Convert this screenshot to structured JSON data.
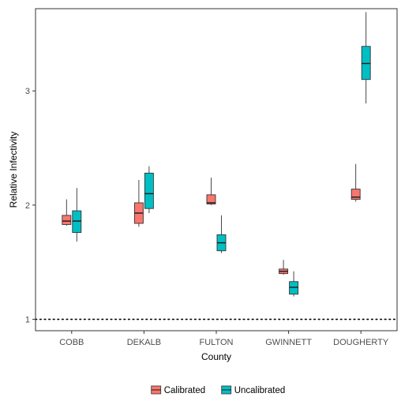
{
  "chart_data": {
    "type": "boxplot",
    "title": "",
    "xlabel": "County",
    "ylabel": "Relative Infectivity",
    "categories": [
      "COBB",
      "DEKALB",
      "FULTON",
      "GWINNETT",
      "DOUGHERTY"
    ],
    "yticks": [
      1,
      2,
      3
    ],
    "ylim": [
      0.9,
      3.72
    ],
    "reference_line": {
      "y": 1,
      "style": "dotted"
    },
    "grid": false,
    "legend_position": "bottom",
    "series": [
      {
        "name": "Calibrated",
        "color": "#F8766D",
        "boxes": [
          {
            "whisker_low": 1.82,
            "q1": 1.83,
            "median": 1.86,
            "q3": 1.91,
            "whisker_high": 2.05
          },
          {
            "whisker_low": 1.81,
            "q1": 1.84,
            "median": 1.93,
            "q3": 2.02,
            "whisker_high": 2.22
          },
          {
            "whisker_low": 2.0,
            "q1": 2.01,
            "median": 2.02,
            "q3": 2.09,
            "whisker_high": 2.24
          },
          {
            "whisker_low": 1.39,
            "q1": 1.4,
            "median": 1.42,
            "q3": 1.44,
            "whisker_high": 1.52
          },
          {
            "whisker_low": 2.03,
            "q1": 2.05,
            "median": 2.07,
            "q3": 2.14,
            "whisker_high": 2.36
          }
        ]
      },
      {
        "name": "Uncalibrated",
        "color": "#00BFC4",
        "boxes": [
          {
            "whisker_low": 1.68,
            "q1": 1.76,
            "median": 1.86,
            "q3": 1.95,
            "whisker_high": 2.15
          },
          {
            "whisker_low": 1.93,
            "q1": 1.97,
            "median": 2.1,
            "q3": 2.28,
            "whisker_high": 2.34
          },
          {
            "whisker_low": 1.58,
            "q1": 1.6,
            "median": 1.67,
            "q3": 1.74,
            "whisker_high": 1.91
          },
          {
            "whisker_low": 1.2,
            "q1": 1.22,
            "median": 1.28,
            "q3": 1.33,
            "whisker_high": 1.42
          },
          {
            "whisker_low": 2.89,
            "q1": 3.1,
            "median": 3.24,
            "q3": 3.39,
            "whisker_high": 3.69
          }
        ]
      }
    ]
  }
}
